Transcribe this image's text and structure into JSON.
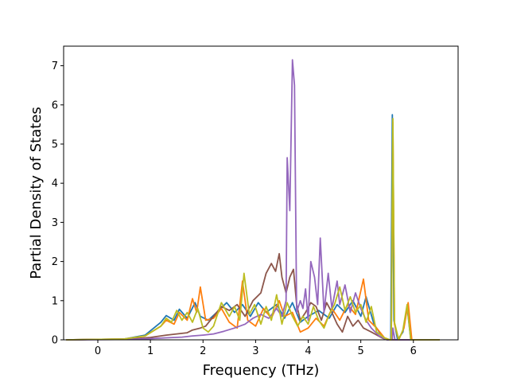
{
  "chart_data": {
    "type": "line",
    "title": "",
    "xlabel": "Frequency (THz)",
    "ylabel": "Partial Density of States",
    "xlim": [
      -0.65,
      6.85
    ],
    "ylim": [
      0,
      7.5
    ],
    "xticks": [
      0,
      1,
      2,
      3,
      4,
      5,
      6
    ],
    "yticks": [
      0,
      1,
      2,
      3,
      4,
      5,
      6,
      7
    ],
    "grid": false,
    "legend": "none",
    "series": [
      {
        "color": "#1f77b4",
        "points": [
          [
            -0.6,
            0
          ],
          [
            0.5,
            0.02
          ],
          [
            0.9,
            0.12
          ],
          [
            1.2,
            0.45
          ],
          [
            1.3,
            0.62
          ],
          [
            1.45,
            0.5
          ],
          [
            1.55,
            0.78
          ],
          [
            1.7,
            0.55
          ],
          [
            1.85,
            0.95
          ],
          [
            1.95,
            0.6
          ],
          [
            2.1,
            0.5
          ],
          [
            2.3,
            0.75
          ],
          [
            2.45,
            0.95
          ],
          [
            2.6,
            0.7
          ],
          [
            2.75,
            0.9
          ],
          [
            2.9,
            0.6
          ],
          [
            3.05,
            0.95
          ],
          [
            3.2,
            0.7
          ],
          [
            3.4,
            0.9
          ],
          [
            3.55,
            0.55
          ],
          [
            3.7,
            0.95
          ],
          [
            3.85,
            0.45
          ],
          [
            4.0,
            0.6
          ],
          [
            4.2,
            0.75
          ],
          [
            4.4,
            0.55
          ],
          [
            4.55,
            0.9
          ],
          [
            4.7,
            0.7
          ],
          [
            4.85,
            1.0
          ],
          [
            5.0,
            0.6
          ],
          [
            5.1,
            1.1
          ],
          [
            5.25,
            0.4
          ],
          [
            5.4,
            0.1
          ],
          [
            5.5,
            0
          ],
          [
            5.57,
            0
          ],
          [
            5.6,
            5.75
          ],
          [
            5.63,
            0.5
          ],
          [
            5.7,
            0
          ],
          [
            5.8,
            0.2
          ],
          [
            5.88,
            0.85
          ],
          [
            5.95,
            0
          ],
          [
            6.5,
            0
          ]
        ]
      },
      {
        "color": "#ff7f0e",
        "points": [
          [
            -0.6,
            0
          ],
          [
            0.5,
            0.02
          ],
          [
            0.9,
            0.1
          ],
          [
            1.2,
            0.35
          ],
          [
            1.3,
            0.5
          ],
          [
            1.45,
            0.4
          ],
          [
            1.55,
            0.7
          ],
          [
            1.7,
            0.5
          ],
          [
            1.8,
            1.05
          ],
          [
            1.88,
            0.7
          ],
          [
            1.95,
            1.35
          ],
          [
            2.05,
            0.5
          ],
          [
            2.2,
            0.55
          ],
          [
            2.35,
            0.8
          ],
          [
            2.5,
            0.45
          ],
          [
            2.65,
            0.3
          ],
          [
            2.75,
            1.5
          ],
          [
            2.85,
            0.5
          ],
          [
            3.0,
            0.35
          ],
          [
            3.15,
            0.8
          ],
          [
            3.3,
            0.55
          ],
          [
            3.45,
            1.0
          ],
          [
            3.55,
            0.6
          ],
          [
            3.7,
            0.7
          ],
          [
            3.85,
            0.2
          ],
          [
            4.0,
            0.3
          ],
          [
            4.15,
            0.55
          ],
          [
            4.3,
            0.35
          ],
          [
            4.45,
            0.8
          ],
          [
            4.6,
            0.5
          ],
          [
            4.75,
            0.9
          ],
          [
            4.9,
            0.65
          ],
          [
            5.05,
            1.55
          ],
          [
            5.15,
            0.5
          ],
          [
            5.3,
            0.3
          ],
          [
            5.45,
            0.05
          ],
          [
            5.55,
            0
          ],
          [
            5.58,
            0
          ],
          [
            5.61,
            5.55
          ],
          [
            5.64,
            0.4
          ],
          [
            5.72,
            0
          ],
          [
            5.82,
            0.3
          ],
          [
            5.9,
            0.95
          ],
          [
            5.97,
            0
          ],
          [
            6.5,
            0
          ]
        ]
      },
      {
        "color": "#8c564b",
        "points": [
          [
            -0.6,
            0
          ],
          [
            0.6,
            0.02
          ],
          [
            1.0,
            0.06
          ],
          [
            1.3,
            0.12
          ],
          [
            1.5,
            0.15
          ],
          [
            1.7,
            0.18
          ],
          [
            1.8,
            0.25
          ],
          [
            1.95,
            0.3
          ],
          [
            2.05,
            0.35
          ],
          [
            2.2,
            0.6
          ],
          [
            2.35,
            0.85
          ],
          [
            2.5,
            0.75
          ],
          [
            2.65,
            0.9
          ],
          [
            2.8,
            0.6
          ],
          [
            2.95,
            1.0
          ],
          [
            3.1,
            1.2
          ],
          [
            3.2,
            1.7
          ],
          [
            3.3,
            1.95
          ],
          [
            3.38,
            1.75
          ],
          [
            3.45,
            2.2
          ],
          [
            3.5,
            1.6
          ],
          [
            3.58,
            1.2
          ],
          [
            3.65,
            1.6
          ],
          [
            3.72,
            1.8
          ],
          [
            3.78,
            0.9
          ],
          [
            3.85,
            0.5
          ],
          [
            3.95,
            0.7
          ],
          [
            4.05,
            0.95
          ],
          [
            4.15,
            0.85
          ],
          [
            4.25,
            0.5
          ],
          [
            4.35,
            0.95
          ],
          [
            4.45,
            0.7
          ],
          [
            4.55,
            0.4
          ],
          [
            4.65,
            0.2
          ],
          [
            4.75,
            0.6
          ],
          [
            4.85,
            0.35
          ],
          [
            4.95,
            0.5
          ],
          [
            5.05,
            0.3
          ],
          [
            5.2,
            0.2
          ],
          [
            5.4,
            0.05
          ],
          [
            5.5,
            0
          ],
          [
            6.5,
            0
          ]
        ]
      },
      {
        "color": "#9467bd",
        "points": [
          [
            -0.6,
            0
          ],
          [
            0.6,
            0.01
          ],
          [
            1.0,
            0.03
          ],
          [
            1.3,
            0.05
          ],
          [
            1.6,
            0.07
          ],
          [
            1.8,
            0.1
          ],
          [
            2.0,
            0.12
          ],
          [
            2.2,
            0.15
          ],
          [
            2.4,
            0.22
          ],
          [
            2.6,
            0.3
          ],
          [
            2.8,
            0.4
          ],
          [
            2.95,
            0.55
          ],
          [
            3.1,
            0.65
          ],
          [
            3.25,
            0.55
          ],
          [
            3.4,
            0.8
          ],
          [
            3.5,
            0.6
          ],
          [
            3.58,
            1.0
          ],
          [
            3.6,
            4.65
          ],
          [
            3.65,
            3.3
          ],
          [
            3.7,
            7.15
          ],
          [
            3.74,
            6.5
          ],
          [
            3.78,
            0.7
          ],
          [
            3.85,
            1.0
          ],
          [
            3.9,
            0.8
          ],
          [
            3.95,
            1.3
          ],
          [
            4.0,
            0.5
          ],
          [
            4.05,
            2.0
          ],
          [
            4.12,
            1.6
          ],
          [
            4.18,
            0.9
          ],
          [
            4.23,
            2.6
          ],
          [
            4.3,
            0.7
          ],
          [
            4.38,
            1.7
          ],
          [
            4.45,
            0.8
          ],
          [
            4.55,
            1.5
          ],
          [
            4.6,
            0.9
          ],
          [
            4.7,
            1.4
          ],
          [
            4.8,
            0.7
          ],
          [
            4.9,
            1.2
          ],
          [
            5.0,
            0.8
          ],
          [
            5.1,
            0.5
          ],
          [
            5.2,
            0.3
          ],
          [
            5.35,
            0.1
          ],
          [
            5.5,
            0
          ],
          [
            5.6,
            0
          ],
          [
            5.61,
            0.3
          ],
          [
            5.65,
            0
          ],
          [
            6.5,
            0
          ]
        ]
      },
      {
        "color": "#bcbd22",
        "points": [
          [
            -0.6,
            0
          ],
          [
            0.5,
            0.02
          ],
          [
            0.9,
            0.1
          ],
          [
            1.2,
            0.35
          ],
          [
            1.3,
            0.55
          ],
          [
            1.4,
            0.45
          ],
          [
            1.5,
            0.75
          ],
          [
            1.6,
            0.5
          ],
          [
            1.7,
            0.7
          ],
          [
            1.8,
            0.45
          ],
          [
            1.9,
            0.8
          ],
          [
            2.0,
            0.3
          ],
          [
            2.1,
            0.2
          ],
          [
            2.2,
            0.35
          ],
          [
            2.35,
            0.95
          ],
          [
            2.5,
            0.6
          ],
          [
            2.6,
            0.85
          ],
          [
            2.7,
            0.5
          ],
          [
            2.78,
            1.7
          ],
          [
            2.88,
            0.65
          ],
          [
            2.98,
            0.9
          ],
          [
            3.1,
            0.4
          ],
          [
            3.2,
            0.85
          ],
          [
            3.3,
            0.5
          ],
          [
            3.4,
            1.15
          ],
          [
            3.5,
            0.4
          ],
          [
            3.6,
            0.95
          ],
          [
            3.7,
            0.6
          ],
          [
            3.8,
            0.35
          ],
          [
            3.9,
            0.6
          ],
          [
            4.0,
            0.4
          ],
          [
            4.1,
            0.85
          ],
          [
            4.2,
            0.5
          ],
          [
            4.3,
            0.3
          ],
          [
            4.4,
            0.65
          ],
          [
            4.5,
            0.9
          ],
          [
            4.6,
            1.35
          ],
          [
            4.7,
            0.75
          ],
          [
            4.8,
            1.1
          ],
          [
            4.9,
            0.7
          ],
          [
            5.0,
            0.9
          ],
          [
            5.1,
            0.45
          ],
          [
            5.2,
            0.85
          ],
          [
            5.3,
            0.2
          ],
          [
            5.45,
            0.05
          ],
          [
            5.55,
            0
          ],
          [
            5.58,
            0
          ],
          [
            5.61,
            5.65
          ],
          [
            5.64,
            0.45
          ],
          [
            5.72,
            0
          ],
          [
            5.8,
            0.25
          ],
          [
            5.88,
            0.9
          ],
          [
            5.95,
            0
          ],
          [
            6.5,
            0
          ]
        ]
      }
    ]
  }
}
